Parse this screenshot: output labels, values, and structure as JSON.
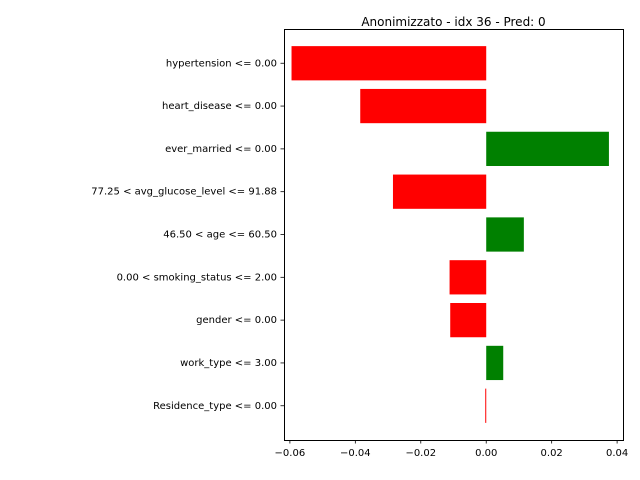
{
  "chart_data": {
    "type": "bar",
    "orientation": "horizontal",
    "title": "Anonimizzato - idx 36 - Pred: 0",
    "xlabel": "",
    "ylabel": "",
    "categories": [
      "hypertension <= 0.00",
      "heart_disease <= 0.00",
      "ever_married <= 0.00",
      "77.25 < avg_glucose_level <= 91.88",
      "46.50 < age <= 60.50",
      "0.00 < smoking_status <= 2.00",
      "gender <= 0.00",
      "work_type <= 3.00",
      "Residence_type <= 0.00"
    ],
    "values": [
      -0.0595,
      -0.0385,
      0.0375,
      -0.0285,
      0.0115,
      -0.0112,
      -0.011,
      0.0052,
      -0.0003
    ],
    "xlim": [
      -0.0618,
      0.0418
    ],
    "xticks": [
      -0.06,
      -0.04,
      -0.02,
      0.0,
      0.02,
      0.04
    ],
    "xtick_labels": [
      "−0.06",
      "−0.04",
      "−0.02",
      "0.00",
      "0.02",
      "0.04"
    ],
    "colors": {
      "positive": "#008000",
      "negative": "#ff0000"
    },
    "grid": false,
    "legend": "none"
  }
}
